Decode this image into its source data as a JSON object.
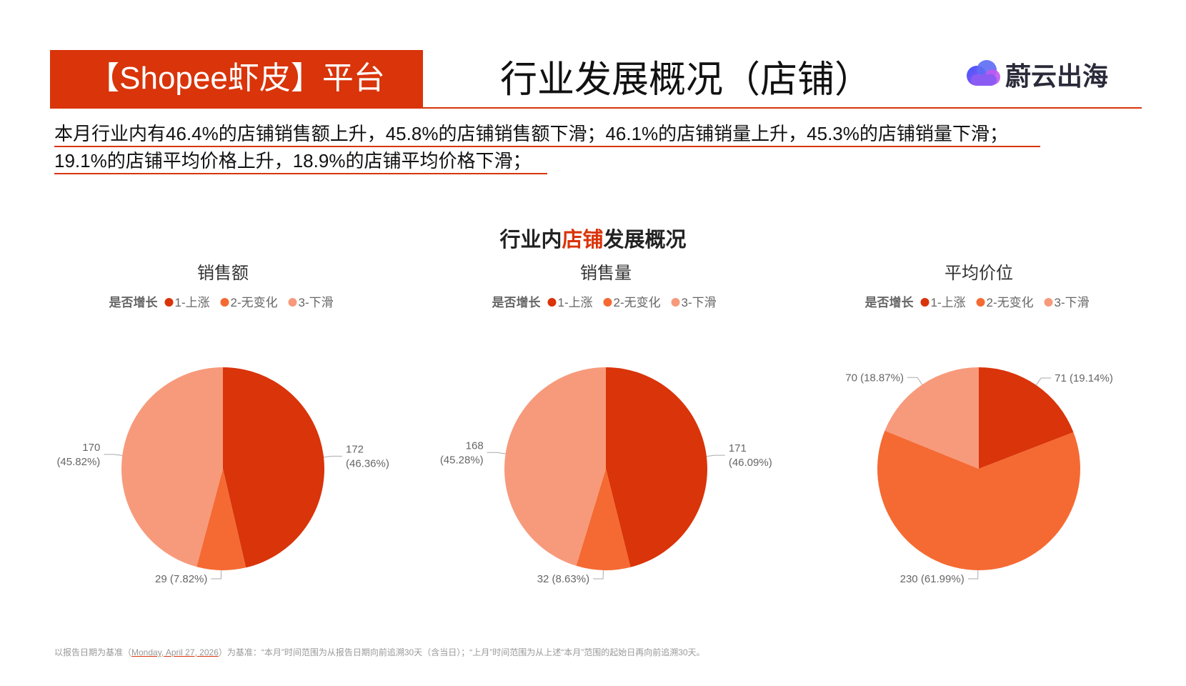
{
  "header": {
    "platform": "【Shopee虾皮】平台",
    "title": "行业发展概况（店铺）",
    "logo_text": "蔚云出海"
  },
  "summary": {
    "line1": "本月行业内有46.4%的店铺销售额上升，45.8%的店铺销售额下滑；46.1%的店铺销量上升，45.3%的店铺销量下滑；",
    "line2": "19.1%的店铺平均价格上升，18.9%的店铺平均价格下滑；"
  },
  "chart_title": {
    "pre": "行业内",
    "highlight": "店铺",
    "post": "发展概况"
  },
  "colors": {
    "accent": "#d9340a",
    "s1": "#d9340a",
    "s2": "#f56a33",
    "s3": "#f79a7b"
  },
  "chart_data": [
    {
      "type": "pie",
      "title": "销售额",
      "legend_title": "是否增长",
      "legend": [
        "1-上涨",
        "2-无变化",
        "3-下滑"
      ],
      "values": [
        172,
        29,
        170
      ],
      "labels": [
        "172\n(46.36%)",
        "29 (7.82%)",
        "170\n(45.82%)"
      ]
    },
    {
      "type": "pie",
      "title": "销售量",
      "legend_title": "是否增长",
      "legend": [
        "1-上涨",
        "2-无变化",
        "3-下滑"
      ],
      "values": [
        171,
        32,
        168
      ],
      "labels": [
        "171\n(46.09%)",
        "32 (8.63%)",
        "168\n(45.28%)"
      ]
    },
    {
      "type": "pie",
      "title": "平均价位",
      "legend_title": "是否增长",
      "legend": [
        "1-上涨",
        "2-无变化",
        "3-下滑"
      ],
      "values": [
        71,
        230,
        70
      ],
      "labels": [
        "71 (19.14%)",
        "230 (61.99%)",
        "70 (18.87%)"
      ]
    }
  ],
  "footnote": {
    "prefix": "以报告日期为基准（",
    "date": "Monday, April 27, 2026",
    "suffix": "）为基准：“本月”时间范围为从报告日期向前追溯30天（含当日）；“上月”时间范围为从上述“本月”范围的起始日再向前追溯30天。"
  }
}
